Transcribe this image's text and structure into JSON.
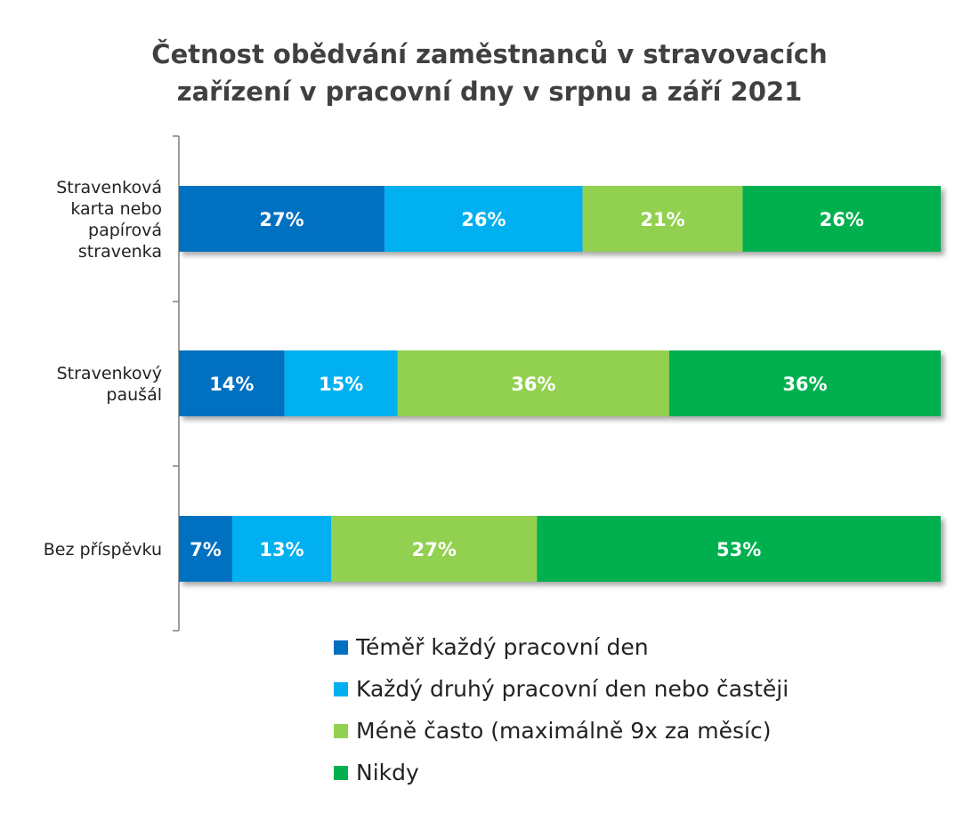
{
  "chart_data": {
    "type": "bar",
    "orientation": "horizontal",
    "stacked": true,
    "title_lines": [
      "Četnost obědvání zaměstnanců v stravovacích",
      "zařízení v pracovní dny v srpnu a září 2021"
    ],
    "categories": [
      [
        "Stravenková",
        "karta nebo",
        "papírová",
        "stravenka"
      ],
      [
        "Stravenkový",
        "paušál"
      ],
      [
        "Bez příspěvku"
      ]
    ],
    "series": [
      {
        "name": "Téměř každý pracovní den",
        "color": "#0070C0",
        "values": [
          27,
          14,
          7
        ]
      },
      {
        "name": "Každý druhý pracovní den nebo častěji",
        "color": "#00B0F0",
        "values": [
          26,
          15,
          13
        ]
      },
      {
        "name": "Méně často (maximálně 9x za měsíc)",
        "color": "#92D050",
        "values": [
          21,
          36,
          27
        ]
      },
      {
        "name": "Nikdy",
        "color": "#00B050",
        "values": [
          26,
          36,
          53
        ]
      }
    ],
    "value_suffix": "%",
    "xlim": [
      0,
      100
    ],
    "legend_position": "bottom",
    "grid": false
  }
}
